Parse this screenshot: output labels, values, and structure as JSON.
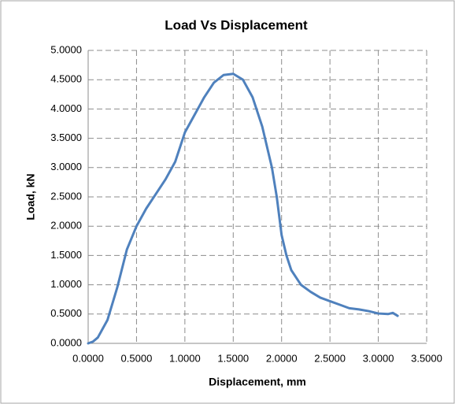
{
  "chart_data": {
    "type": "line",
    "title": "Load Vs Displacement",
    "xlabel": "Displacement, mm",
    "ylabel": "Load, kN",
    "x": [
      0,
      0.05,
      0.1,
      0.2,
      0.3,
      0.4,
      0.5,
      0.6,
      0.7,
      0.8,
      0.9,
      1.0,
      1.1,
      1.2,
      1.3,
      1.4,
      1.5,
      1.6,
      1.7,
      1.8,
      1.9,
      1.95,
      2.0,
      2.05,
      2.1,
      2.2,
      2.3,
      2.4,
      2.5,
      2.6,
      2.7,
      2.8,
      2.9,
      3.0,
      3.1,
      3.15,
      3.2
    ],
    "values": [
      0,
      0.03,
      0.1,
      0.4,
      0.95,
      1.6,
      2.0,
      2.3,
      2.55,
      2.8,
      3.1,
      3.6,
      3.9,
      4.2,
      4.45,
      4.58,
      4.6,
      4.5,
      4.2,
      3.7,
      3.0,
      2.5,
      1.85,
      1.5,
      1.25,
      1.0,
      0.88,
      0.78,
      0.72,
      0.66,
      0.6,
      0.58,
      0.55,
      0.51,
      0.5,
      0.52,
      0.47
    ],
    "color": "#4f81bd",
    "xlim": [
      0,
      3.5
    ],
    "xticks": [
      {
        "value": 0,
        "label": "0.0000"
      },
      {
        "value": 0.5,
        "label": "0.5000"
      },
      {
        "value": 1,
        "label": "1.0000"
      },
      {
        "value": 1.5,
        "label": "1.5000"
      },
      {
        "value": 2,
        "label": "2.0000"
      },
      {
        "value": 2.5,
        "label": "2.5000"
      },
      {
        "value": 3,
        "label": "3.0000"
      },
      {
        "value": 3.5,
        "label": "3.5000"
      }
    ],
    "ylim": [
      0,
      5
    ],
    "yticks": [
      {
        "value": 0,
        "label": "0.0000"
      },
      {
        "value": 0.5,
        "label": "0.5000"
      },
      {
        "value": 1,
        "label": "1.0000"
      },
      {
        "value": 1.5,
        "label": "1.5000"
      },
      {
        "value": 2,
        "label": "2.0000"
      },
      {
        "value": 2.5,
        "label": "2.5000"
      },
      {
        "value": 3,
        "label": "3.0000"
      },
      {
        "value": 3.5,
        "label": "3.5000"
      },
      {
        "value": 4,
        "label": "4.0000"
      },
      {
        "value": 4.5,
        "label": "4.5000"
      },
      {
        "value": 5,
        "label": "5.0000"
      }
    ],
    "grid": true
  }
}
